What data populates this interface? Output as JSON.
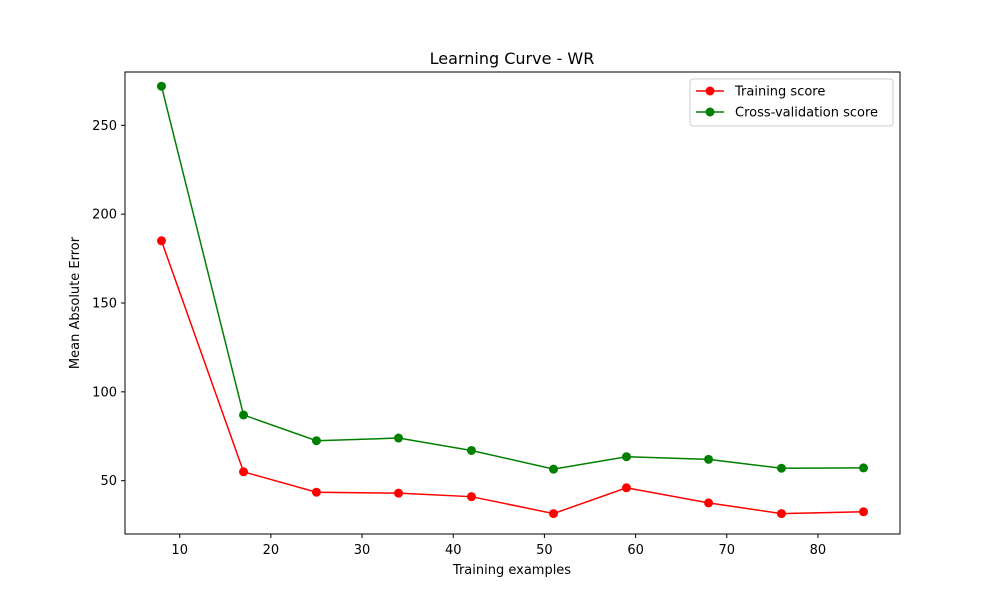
{
  "chart_data": {
    "type": "line",
    "title": "Learning Curve - WR",
    "xlabel": "Training examples",
    "ylabel": "Mean Absolute Error",
    "xlim": [
      4,
      89
    ],
    "ylim": [
      20,
      280
    ],
    "xticks": [
      10,
      20,
      30,
      40,
      50,
      60,
      70,
      80
    ],
    "yticks": [
      50,
      100,
      150,
      200,
      250
    ],
    "grid": false,
    "legend_position": "top-right",
    "x": [
      8,
      17,
      25,
      34,
      42,
      51,
      59,
      68,
      76,
      85
    ],
    "series": [
      {
        "name": "Training score",
        "color": "#ff0000",
        "marker": "circle",
        "values": [
          185,
          55,
          43.5,
          43,
          41,
          31.5,
          46,
          37.5,
          31.5,
          32.5
        ]
      },
      {
        "name": "Cross-validation score",
        "color": "#008000",
        "marker": "circle",
        "values": [
          272,
          87,
          72.5,
          74,
          67,
          56.5,
          63.5,
          62,
          57,
          57.2
        ]
      }
    ]
  }
}
